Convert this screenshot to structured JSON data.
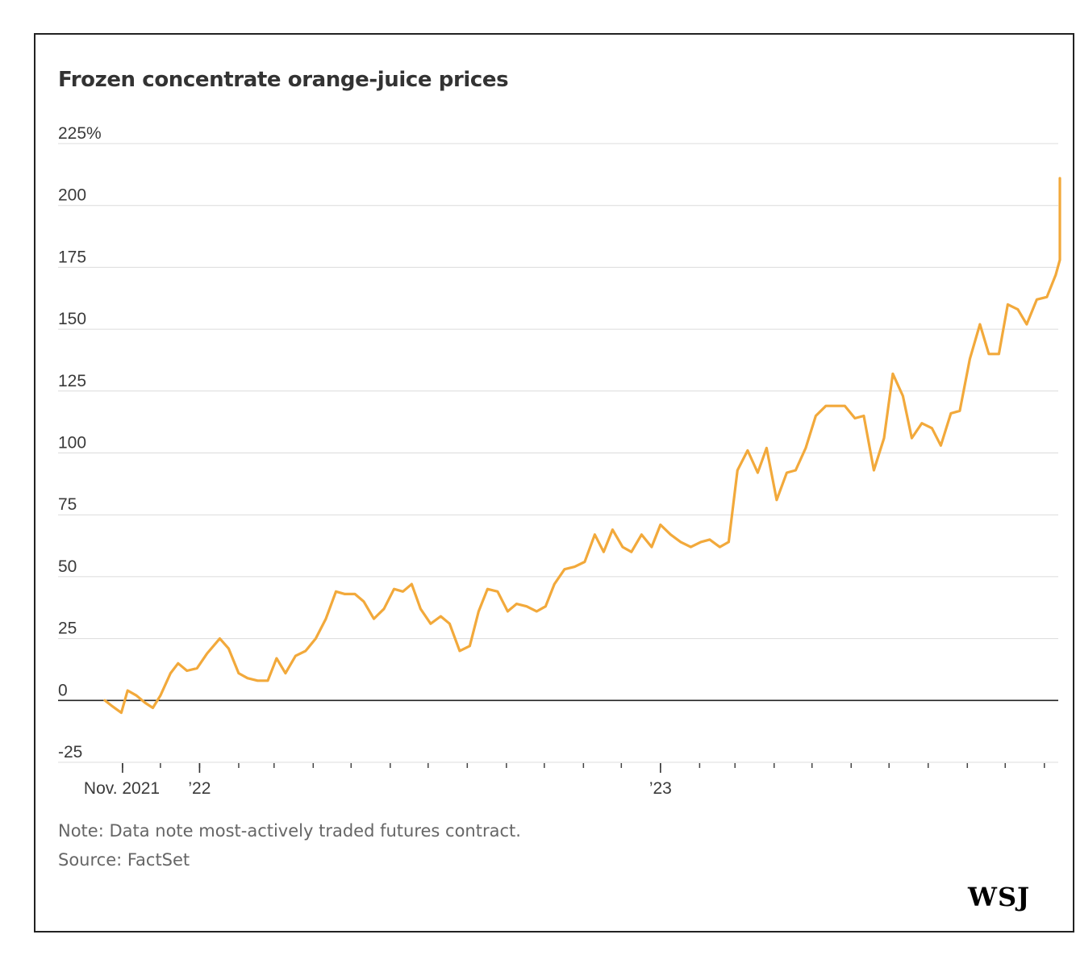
{
  "chart_data": {
    "type": "line",
    "title": "Frozen concentrate orange-juice prices",
    "y_ticks": [
      {
        "value": 225,
        "label": "225%"
      },
      {
        "value": 200,
        "label": "200"
      },
      {
        "value": 175,
        "label": "175"
      },
      {
        "value": 150,
        "label": "150"
      },
      {
        "value": 125,
        "label": "125"
      },
      {
        "value": 100,
        "label": "100"
      },
      {
        "value": 75,
        "label": "75"
      },
      {
        "value": 50,
        "label": "50"
      },
      {
        "value": 25,
        "label": "25"
      },
      {
        "value": 0,
        "label": "0"
      },
      {
        "value": -25,
        "label": "-25"
      }
    ],
    "ylim": [
      -25,
      225
    ],
    "x_tick_labels": [
      {
        "date": "2021-11-01",
        "label": "Nov. 2021"
      },
      {
        "date": "2022-01-01",
        "label": "’22"
      },
      {
        "date": "2023-01-01",
        "label": "’23"
      }
    ],
    "x_minor_ticks": [
      "2021-11-01",
      "2021-12-01",
      "2022-01-01",
      "2022-02-01",
      "2022-03-01",
      "2022-04-01",
      "2022-05-01",
      "2022-06-01",
      "2022-07-01",
      "2022-08-01",
      "2022-09-01",
      "2022-10-01",
      "2022-11-01",
      "2022-12-01",
      "2023-01-01",
      "2023-02-01",
      "2023-03-01",
      "2023-04-01",
      "2023-05-01",
      "2023-06-01",
      "2023-07-01",
      "2023-08-01",
      "2023-09-01",
      "2023-10-01",
      "2023-11-01"
    ],
    "xlim": [
      "2021-10-18",
      "2023-11-12"
    ],
    "zero_line": true,
    "grid": true,
    "line_color": "#f2a93b",
    "series": [
      {
        "values": [
          {
            "x": "2021-10-18",
            "y": 0
          },
          {
            "x": "2021-10-23",
            "y": -2
          },
          {
            "x": "2021-10-31",
            "y": -5
          },
          {
            "x": "2021-11-05",
            "y": 4
          },
          {
            "x": "2021-11-12",
            "y": 2
          },
          {
            "x": "2021-11-19",
            "y": -1
          },
          {
            "x": "2021-11-25",
            "y": -3
          },
          {
            "x": "2021-12-01",
            "y": 2
          },
          {
            "x": "2021-12-09",
            "y": 11
          },
          {
            "x": "2021-12-15",
            "y": 15
          },
          {
            "x": "2021-12-22",
            "y": 12
          },
          {
            "x": "2021-12-30",
            "y": 13
          },
          {
            "x": "2022-01-07",
            "y": 19
          },
          {
            "x": "2022-01-17",
            "y": 25
          },
          {
            "x": "2022-01-24",
            "y": 21
          },
          {
            "x": "2022-02-01",
            "y": 11
          },
          {
            "x": "2022-02-08",
            "y": 9
          },
          {
            "x": "2022-02-16",
            "y": 8
          },
          {
            "x": "2022-02-24",
            "y": 8
          },
          {
            "x": "2022-03-03",
            "y": 17
          },
          {
            "x": "2022-03-10",
            "y": 11
          },
          {
            "x": "2022-03-18",
            "y": 18
          },
          {
            "x": "2022-03-26",
            "y": 20
          },
          {
            "x": "2022-04-03",
            "y": 25
          },
          {
            "x": "2022-04-11",
            "y": 33
          },
          {
            "x": "2022-04-19",
            "y": 44
          },
          {
            "x": "2022-04-26",
            "y": 43
          },
          {
            "x": "2022-05-04",
            "y": 43
          },
          {
            "x": "2022-05-11",
            "y": 40
          },
          {
            "x": "2022-05-19",
            "y": 33
          },
          {
            "x": "2022-05-27",
            "y": 37
          },
          {
            "x": "2022-06-04",
            "y": 45
          },
          {
            "x": "2022-06-11",
            "y": 44
          },
          {
            "x": "2022-06-18",
            "y": 47
          },
          {
            "x": "2022-06-25",
            "y": 37
          },
          {
            "x": "2022-07-03",
            "y": 31
          },
          {
            "x": "2022-07-11",
            "y": 34
          },
          {
            "x": "2022-07-18",
            "y": 31
          },
          {
            "x": "2022-07-26",
            "y": 20
          },
          {
            "x": "2022-08-03",
            "y": 22
          },
          {
            "x": "2022-08-10",
            "y": 36
          },
          {
            "x": "2022-08-17",
            "y": 45
          },
          {
            "x": "2022-08-25",
            "y": 44
          },
          {
            "x": "2022-09-02",
            "y": 36
          },
          {
            "x": "2022-09-09",
            "y": 39
          },
          {
            "x": "2022-09-17",
            "y": 38
          },
          {
            "x": "2022-09-25",
            "y": 36
          },
          {
            "x": "2022-10-02",
            "y": 38
          },
          {
            "x": "2022-10-09",
            "y": 47
          },
          {
            "x": "2022-10-17",
            "y": 53
          },
          {
            "x": "2022-10-25",
            "y": 54
          },
          {
            "x": "2022-11-02",
            "y": 56
          },
          {
            "x": "2022-11-10",
            "y": 67
          },
          {
            "x": "2022-11-17",
            "y": 60
          },
          {
            "x": "2022-11-24",
            "y": 69
          },
          {
            "x": "2022-12-02",
            "y": 62
          },
          {
            "x": "2022-12-09",
            "y": 60
          },
          {
            "x": "2022-12-17",
            "y": 67
          },
          {
            "x": "2022-12-25",
            "y": 62
          },
          {
            "x": "2023-01-01",
            "y": 71
          },
          {
            "x": "2023-01-09",
            "y": 67
          },
          {
            "x": "2023-01-17",
            "y": 64
          },
          {
            "x": "2023-01-25",
            "y": 62
          },
          {
            "x": "2023-02-02",
            "y": 64
          },
          {
            "x": "2023-02-09",
            "y": 65
          },
          {
            "x": "2023-02-17",
            "y": 62
          },
          {
            "x": "2023-02-24",
            "y": 64
          },
          {
            "x": "2023-03-03",
            "y": 93
          },
          {
            "x": "2023-03-11",
            "y": 101
          },
          {
            "x": "2023-03-19",
            "y": 92
          },
          {
            "x": "2023-03-26",
            "y": 102
          },
          {
            "x": "2023-04-03",
            "y": 81
          },
          {
            "x": "2023-04-11",
            "y": 92
          },
          {
            "x": "2023-04-18",
            "y": 93
          },
          {
            "x": "2023-04-26",
            "y": 102
          },
          {
            "x": "2023-05-04",
            "y": 115
          },
          {
            "x": "2023-05-12",
            "y": 119
          },
          {
            "x": "2023-05-20",
            "y": 119
          },
          {
            "x": "2023-05-27",
            "y": 119
          },
          {
            "x": "2023-06-04",
            "y": 114
          },
          {
            "x": "2023-06-11",
            "y": 115
          },
          {
            "x": "2023-06-19",
            "y": 93
          },
          {
            "x": "2023-06-27",
            "y": 106
          },
          {
            "x": "2023-07-04",
            "y": 132
          },
          {
            "x": "2023-07-12",
            "y": 123
          },
          {
            "x": "2023-07-19",
            "y": 106
          },
          {
            "x": "2023-07-27",
            "y": 112
          },
          {
            "x": "2023-08-04",
            "y": 110
          },
          {
            "x": "2023-08-11",
            "y": 103
          },
          {
            "x": "2023-08-19",
            "y": 116
          },
          {
            "x": "2023-08-26",
            "y": 117
          },
          {
            "x": "2023-09-03",
            "y": 138
          },
          {
            "x": "2023-09-11",
            "y": 152
          },
          {
            "x": "2023-09-18",
            "y": 140
          },
          {
            "x": "2023-09-26",
            "y": 140
          },
          {
            "x": "2023-10-03",
            "y": 160
          },
          {
            "x": "2023-10-11",
            "y": 158
          },
          {
            "x": "2023-10-18",
            "y": 152
          },
          {
            "x": "2023-10-26",
            "y": 162
          },
          {
            "x": "2023-11-03",
            "y": 163
          },
          {
            "x": "2023-11-10",
            "y": 172
          },
          {
            "x": "2023-11-18",
            "y": 178
          },
          {
            "x": "2023-11-25",
            "y": 200
          },
          {
            "x": "2023-12-03",
            "y": 206
          },
          {
            "x": "2023-12-10",
            "y": 211
          }
        ]
      }
    ]
  },
  "notes": {
    "note": "Note: Data note most-actively traded futures contract.",
    "source": "Source: FactSet"
  },
  "logo": "WSJ"
}
